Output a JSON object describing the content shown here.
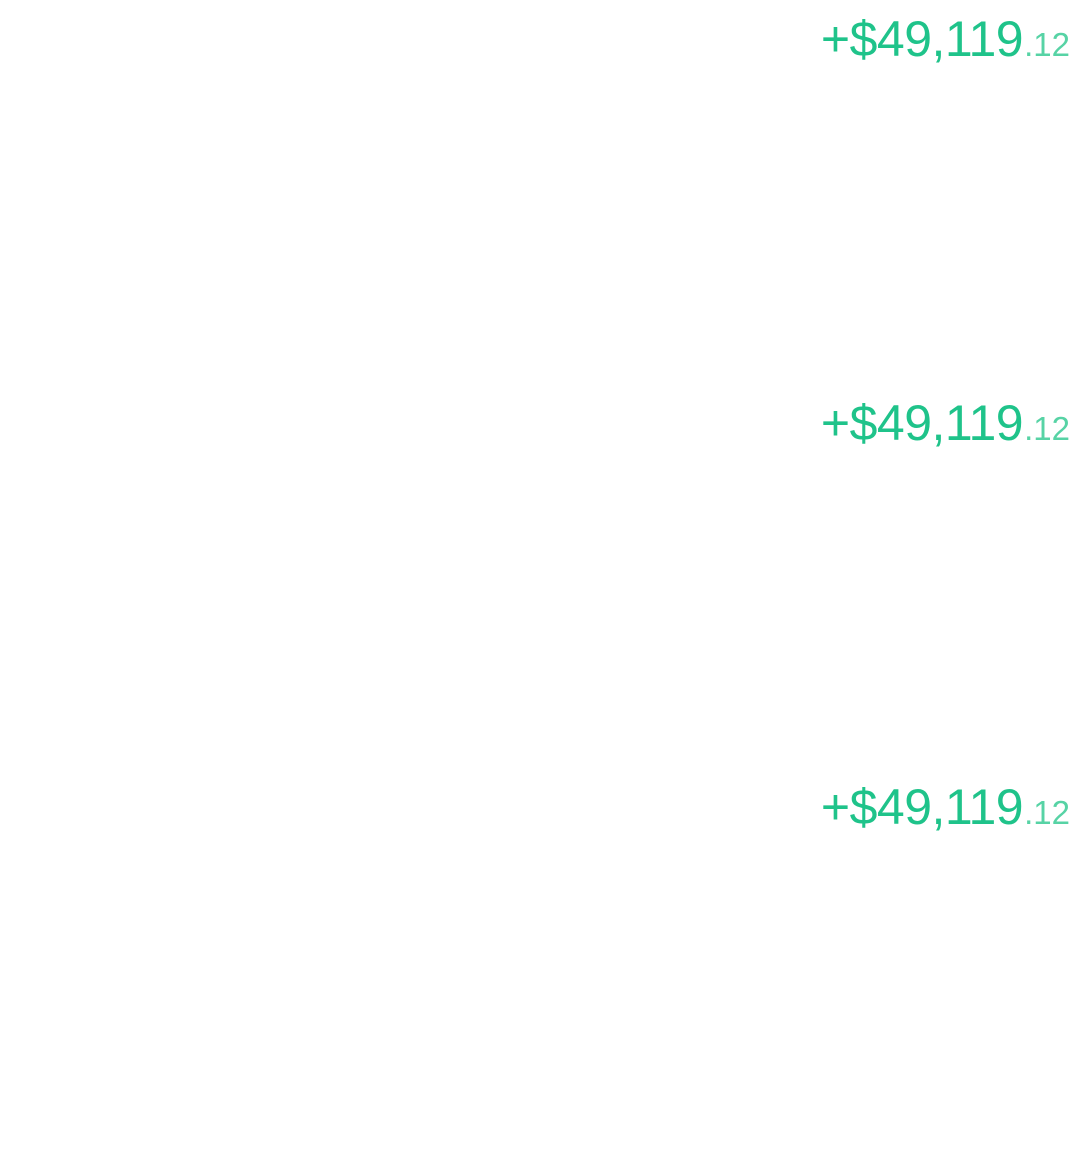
{
  "accent_color": "#1fc38a",
  "cents_color": "#57d3a5",
  "rows": [
    {
      "amount_main": "+$49,119",
      "amount_cents": ".12"
    },
    {
      "amount_main": "+$49,119",
      "amount_cents": ".12"
    },
    {
      "amount_main": "+$49,119",
      "amount_cents": ".12"
    }
  ]
}
